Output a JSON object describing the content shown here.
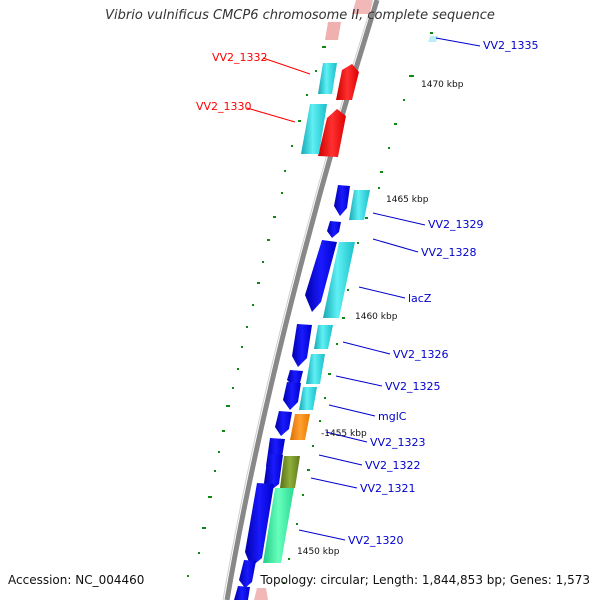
{
  "title": "Vibrio vulnificus CMCP6 chromosome II, complete sequence",
  "footer": {
    "accession": "Accession: NC_004460",
    "topology": "Topology: circular; Length: 1,844,853 bp; Genes: 1,573"
  },
  "tick_labels": [
    "1470 kbp",
    "1465 kbp",
    "1460 kbp",
    "-1455 kbp",
    "1450 kbp"
  ],
  "gene_labels": [
    {
      "text": "VV2_1335",
      "strand": "reverse",
      "color": "#0000cc"
    },
    {
      "text": "VV2_1332",
      "strand": "forward",
      "color": "#ff0000"
    },
    {
      "text": "VV2_1330",
      "strand": "forward",
      "color": "#ff0000"
    },
    {
      "text": "VV2_1329",
      "strand": "reverse",
      "color": "#0000cc"
    },
    {
      "text": "VV2_1328",
      "strand": "reverse",
      "color": "#0000cc"
    },
    {
      "text": "lacZ",
      "strand": "reverse",
      "color": "#0000cc"
    },
    {
      "text": "VV2_1326",
      "strand": "reverse",
      "color": "#0000cc"
    },
    {
      "text": "VV2_1325",
      "strand": "reverse",
      "color": "#0000cc"
    },
    {
      "text": "mglC",
      "strand": "reverse",
      "color": "#0000cc"
    },
    {
      "text": "VV2_1323",
      "strand": "reverse",
      "color": "#0000cc"
    },
    {
      "text": "VV2_1322",
      "strand": "reverse",
      "color": "#0000cc"
    },
    {
      "text": "VV2_1321",
      "strand": "reverse",
      "color": "#0000cc"
    },
    {
      "text": "VV2_1320",
      "strand": "reverse",
      "color": "#0000cc"
    }
  ],
  "colors": {
    "forward_gene": "#ff0000",
    "reverse_gene": "#0000ee",
    "cds_feature": "#22d0d8",
    "orange_feature": "#ff8800",
    "olive_feature": "#6b8e23",
    "spring_feature": "#33ee99",
    "backbone": "#888888",
    "gc_ticks": "#118811"
  }
}
